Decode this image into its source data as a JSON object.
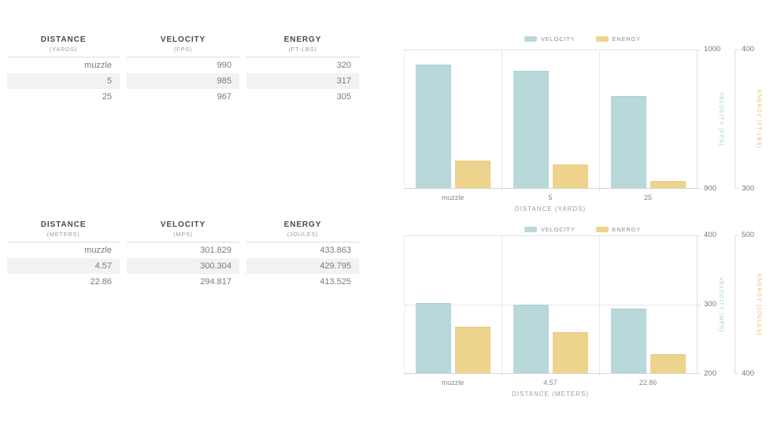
{
  "tables": [
    {
      "columns": [
        {
          "title": "DISTANCE",
          "unit": "(YARDS)"
        },
        {
          "title": "VELOCITY",
          "unit": "(FPS)"
        },
        {
          "title": "ENERGY",
          "unit": "(FT-LBS)"
        }
      ],
      "rows": [
        [
          "muzzle",
          "990",
          "320"
        ],
        [
          "5",
          "985",
          "317"
        ],
        [
          "25",
          "967",
          "305"
        ]
      ]
    },
    {
      "columns": [
        {
          "title": "DISTANCE",
          "unit": "(METERS)"
        },
        {
          "title": "VELOCITY",
          "unit": "(MPS)"
        },
        {
          "title": "ENERGY",
          "unit": "(JOULES)"
        }
      ],
      "rows": [
        [
          "muzzle",
          "301.829",
          "433.863"
        ],
        [
          "4.57",
          "300.304",
          "429.795"
        ],
        [
          "22.86",
          "294.817",
          "413.525"
        ]
      ]
    }
  ],
  "chart_data": [
    {
      "type": "bar",
      "title": "",
      "categories": [
        "muzzle",
        "5",
        "25"
      ],
      "xlabel": "DISTANCE (YARDS)",
      "legend": [
        "VELOCITY",
        "ENERGY"
      ],
      "legend_position": "top-center",
      "grid": "vertical category separators",
      "series": [
        {
          "name": "VELOCITY",
          "values": [
            990,
            985,
            967
          ],
          "ylim": [
            900,
            1000
          ],
          "axis_ticks": [
            "1000",
            "900"
          ],
          "axis_label": "VELOCITY (FPS)",
          "color": "#b8d8d9",
          "border": "#aacfd1"
        },
        {
          "name": "ENERGY",
          "values": [
            320,
            317,
            305
          ],
          "ylim": [
            300,
            400
          ],
          "axis_ticks": [
            "400",
            "300"
          ],
          "axis_label": "ENERGY (FT-LBS)",
          "color": "#eed38c",
          "border": "#e6c778"
        }
      ]
    },
    {
      "type": "bar",
      "title": "",
      "categories": [
        "muzzle",
        "4.57",
        "22.86"
      ],
      "xlabel": "DISTANCE (METERS)",
      "legend": [
        "VELOCITY",
        "ENERGY"
      ],
      "legend_position": "top-center",
      "grid": "vertical category separators + horizontal line at velocity 300",
      "series": [
        {
          "name": "VELOCITY",
          "values": [
            301.829,
            300.304,
            294.817
          ],
          "ylim": [
            200,
            400
          ],
          "axis_ticks": [
            "400",
            "300",
            "200"
          ],
          "axis_label": "VELOCITY (MPS)",
          "color": "#b8d8d9",
          "border": "#aacfd1"
        },
        {
          "name": "ENERGY",
          "values": [
            433.863,
            429.795,
            413.525
          ],
          "ylim": [
            400,
            500
          ],
          "axis_ticks": [
            "500",
            "400"
          ],
          "axis_label": "ENERGY (JOULES)",
          "color": "#eed38c",
          "border": "#e6c778"
        }
      ]
    }
  ],
  "colors": {
    "velocity": "#b8d8d9",
    "velocity_label": "#a3ccd1",
    "energy": "#eed38c",
    "energy_label": "#e6c168",
    "grid": "#e8e8e8",
    "stripe": "#f2f2f2"
  }
}
